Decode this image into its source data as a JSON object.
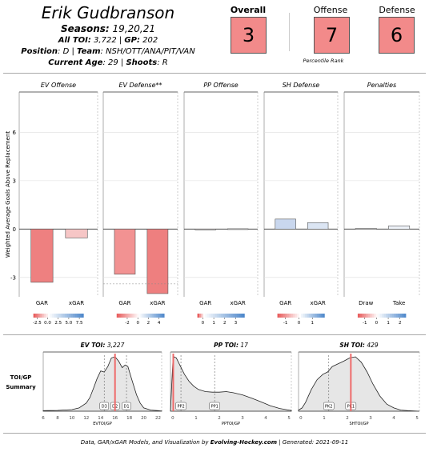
{
  "header": {
    "player_name": "Erik Gudbranson",
    "seasons_label": "Seasons:",
    "seasons_value": " 19,20,21",
    "toi_label": "All TOI:",
    "toi_value": " 3,722 | ",
    "gp_label": "GP:",
    "gp_value": " 202",
    "position_label": "Position",
    "position_value": ": D | ",
    "team_label": "Team",
    "team_value": ": NSH/OTT/ANA/PIT/VAN",
    "age_label": "Current Age",
    "age_value": ": 29 | ",
    "shoots_label": "Shoots",
    "shoots_value": ": R"
  },
  "ranks": {
    "overall_label": "Overall",
    "overall_value": "3",
    "offense_label": "Offense",
    "offense_value": "7",
    "defense_label": "Defense",
    "defense_value": "6",
    "percentile_caption": "Percentile Rank",
    "box_color": "#f28a8a"
  },
  "gar_chart": {
    "ylabel": "Weighted Average Goals Above Replacement",
    "ylim": [
      -4.2,
      8.5
    ],
    "yticks": [
      "6",
      "3",
      "0",
      "-3"
    ],
    "yticks_values": [
      6,
      3,
      0,
      -3
    ],
    "panels": [
      {
        "title": "EV Offense",
        "bars": [
          {
            "label": "GAR",
            "value": -3.3,
            "color": "#ee8080"
          },
          {
            "label": "xGAR",
            "value": -0.55,
            "color": "#f6c6c6"
          }
        ],
        "legend_ticks": [
          "-2.5",
          "0.0",
          "2.5",
          "5.0",
          "7.5"
        ],
        "legend_range": [
          -3.4,
          8.5
        ]
      },
      {
        "title": "EV Defense**",
        "bars": [
          {
            "label": "GAR",
            "value": -2.8,
            "color": "#f29292"
          },
          {
            "label": "xGAR",
            "value": -4.0,
            "color": "#ee7f7f"
          }
        ],
        "legend_ticks": [
          "-2",
          "0",
          "2",
          "4"
        ],
        "legend_range": [
          -4.0,
          5.0
        ]
      },
      {
        "title": "PP Offense",
        "bars": [
          {
            "label": "GAR",
            "value": -0.05,
            "color": "#f7eeee"
          },
          {
            "label": "xGAR",
            "value": 0.02,
            "color": "#f5f5f5"
          }
        ],
        "legend_ticks": [
          "0",
          "1",
          "2",
          "3"
        ],
        "legend_range": [
          -0.5,
          3.8
        ]
      },
      {
        "title": "SH Defense",
        "bars": [
          {
            "label": "GAR",
            "value": 0.62,
            "color": "#c9d7ee"
          },
          {
            "label": "xGAR",
            "value": 0.4,
            "color": "#dbe5f3"
          }
        ],
        "legend_ticks": [
          "-1",
          "0",
          "1"
        ],
        "legend_range": [
          -1.6,
          1.9
        ]
      },
      {
        "title": "Penalties",
        "bars": [
          {
            "label": "Draw",
            "value": 0.04,
            "color": "#f5f5f5"
          },
          {
            "label": "Take",
            "value": 0.2,
            "color": "#eef2f8"
          }
        ],
        "legend_ticks": [
          "-1",
          "0",
          "1",
          "2"
        ],
        "legend_range": [
          -1.6,
          2.5
        ]
      }
    ]
  },
  "toi_summary": {
    "row_label_1": "TOI/GP",
    "row_label_2": "Summary",
    "panels": [
      {
        "title_label": "EV TOI:",
        "title_value": " 3,227",
        "xlabel": "EVTOI/GP",
        "xlim": [
          6,
          22.5
        ],
        "xticks": [
          "6",
          "8",
          "10",
          "12",
          "14",
          "16",
          "18",
          "20",
          "22"
        ],
        "xticks_values": [
          6,
          8,
          10,
          12,
          14,
          16,
          18,
          20,
          22
        ],
        "player_value": 16.0,
        "markers": [
          {
            "label": "D3",
            "value": 14.5
          },
          {
            "label": "D2",
            "value": 16.0
          },
          {
            "label": "D1",
            "value": 17.6
          }
        ],
        "density": [
          [
            6,
            0.01
          ],
          [
            8,
            0.015
          ],
          [
            10,
            0.03
          ],
          [
            11,
            0.06
          ],
          [
            12,
            0.15
          ],
          [
            12.5,
            0.25
          ],
          [
            13,
            0.42
          ],
          [
            13.5,
            0.6
          ],
          [
            14,
            0.74
          ],
          [
            14.5,
            0.72
          ],
          [
            15,
            0.82
          ],
          [
            15.5,
            0.98
          ],
          [
            16,
            1.0
          ],
          [
            16.5,
            0.92
          ],
          [
            17,
            0.8
          ],
          [
            17.4,
            0.85
          ],
          [
            17.8,
            0.82
          ],
          [
            18.3,
            0.6
          ],
          [
            19,
            0.3
          ],
          [
            19.5,
            0.15
          ],
          [
            20,
            0.06
          ],
          [
            21,
            0.02
          ],
          [
            22,
            0.01
          ],
          [
            22.5,
            0.005
          ]
        ]
      },
      {
        "title_label": "PP TOI:",
        "title_value": " 17",
        "xlabel": "PPTOI/GP",
        "xlim": [
          -0.1,
          5.1
        ],
        "xticks": [
          "0",
          "1",
          "2",
          "3",
          "4",
          "5"
        ],
        "xticks_values": [
          0,
          1,
          2,
          3,
          4,
          5
        ],
        "player_value": 0.02,
        "markers": [
          {
            "label": "PP2",
            "value": 0.35
          },
          {
            "label": "PP1",
            "value": 1.8
          }
        ],
        "density": [
          [
            -0.1,
            0.0
          ],
          [
            0.0,
            0.9
          ],
          [
            0.05,
            1.0
          ],
          [
            0.15,
            0.98
          ],
          [
            0.3,
            0.85
          ],
          [
            0.5,
            0.68
          ],
          [
            0.7,
            0.55
          ],
          [
            0.9,
            0.46
          ],
          [
            1.1,
            0.4
          ],
          [
            1.4,
            0.36
          ],
          [
            1.7,
            0.35
          ],
          [
            2.0,
            0.35
          ],
          [
            2.3,
            0.36
          ],
          [
            2.6,
            0.34
          ],
          [
            3.0,
            0.3
          ],
          [
            3.4,
            0.24
          ],
          [
            3.8,
            0.17
          ],
          [
            4.2,
            0.1
          ],
          [
            4.6,
            0.05
          ],
          [
            5.0,
            0.02
          ],
          [
            5.1,
            0.015
          ]
        ]
      },
      {
        "title_label": "SH TOI:",
        "title_value": " 429",
        "xlabel": "SHTOI/GP",
        "xlim": [
          -0.1,
          5.1
        ],
        "xticks": [
          "0",
          "1",
          "2",
          "3",
          "4",
          "5"
        ],
        "xticks_values": [
          0,
          1,
          2,
          3,
          4,
          5
        ],
        "player_value": 2.15,
        "markers": [
          {
            "label": "PK2",
            "value": 1.2
          },
          {
            "label": "PK1",
            "value": 2.15
          }
        ],
        "density": [
          [
            -0.1,
            0.02
          ],
          [
            0.05,
            0.06
          ],
          [
            0.2,
            0.16
          ],
          [
            0.45,
            0.4
          ],
          [
            0.7,
            0.58
          ],
          [
            0.95,
            0.68
          ],
          [
            1.15,
            0.72
          ],
          [
            1.35,
            0.82
          ],
          [
            1.6,
            0.87
          ],
          [
            1.85,
            0.92
          ],
          [
            2.1,
            0.98
          ],
          [
            2.35,
            1.0
          ],
          [
            2.6,
            0.9
          ],
          [
            2.85,
            0.72
          ],
          [
            3.1,
            0.5
          ],
          [
            3.4,
            0.28
          ],
          [
            3.7,
            0.13
          ],
          [
            4.0,
            0.06
          ],
          [
            4.3,
            0.02
          ],
          [
            4.6,
            0.01
          ],
          [
            5.1,
            0.0
          ]
        ]
      }
    ]
  },
  "footer": {
    "text_1": "Data, GAR/xGAR Models, and Visualization  by ",
    "brand": "Evolving-Hockey.com",
    "text_2": "   | Generated:  2021-09-11"
  }
}
